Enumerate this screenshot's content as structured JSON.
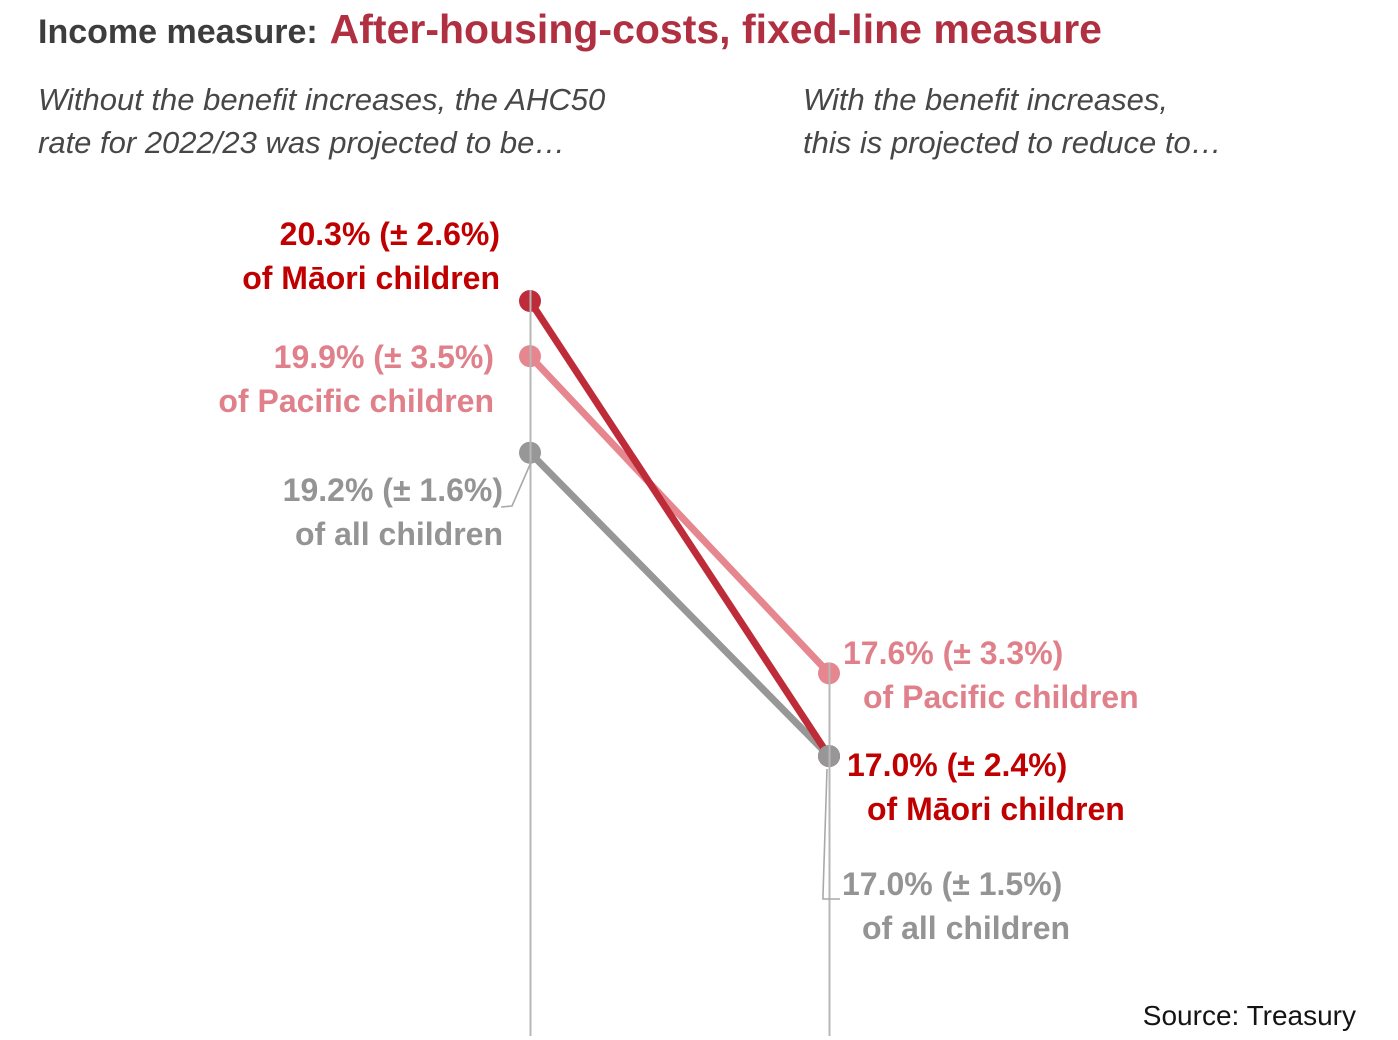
{
  "title": {
    "prefix": "Income measure:",
    "main": "After-housing-costs, fixed-line measure"
  },
  "subtitle_left": {
    "line1": "Without the benefit increases, the AHC50",
    "line2": "rate for 2022/23 was projected to be…"
  },
  "subtitle_right": {
    "line1": "With the benefit increases,",
    "line2": "this is projected to reduce to…"
  },
  "source": "Source: Treasury",
  "colors": {
    "title_prefix": "#3d3d3d",
    "title_main": "#b03041",
    "subtitle": "#474747",
    "source": "#141414",
    "axis_line": "#b7b7b7",
    "leader_line": "#a9a9a9",
    "background": "#ffffff"
  },
  "chart_data": {
    "type": "slope",
    "unit": "%",
    "x_labels": [
      "Without the benefit increases, the AHC50 rate for 2022/23 was projected to be…",
      "With the benefit increases, this is projected to reduce to…"
    ],
    "series": [
      {
        "key": "maori",
        "name": "Māori children",
        "before": 20.3,
        "before_moe": 2.6,
        "after": 17.0,
        "after_moe": 2.4,
        "left_label": [
          "20.3% (± 2.6%)",
          "of Māori children"
        ],
        "right_label": [
          "17.0% (± 2.4%)",
          "of Māori children"
        ],
        "line_color": "#bf2c39",
        "label_color": "#c00000"
      },
      {
        "key": "pacific",
        "name": "Pacific children",
        "before": 19.9,
        "before_moe": 3.5,
        "after": 17.6,
        "after_moe": 3.3,
        "left_label": [
          "19.9% (± 3.5%)",
          "of Pacific children"
        ],
        "right_label": [
          "17.6% (± 3.3%)",
          "of Pacific children"
        ],
        "line_color": "#e6868f",
        "label_color": "#e0808b"
      },
      {
        "key": "all",
        "name": "all children",
        "before": 19.2,
        "before_moe": 1.6,
        "after": 17.0,
        "after_moe": 1.5,
        "left_label": [
          "19.2% (± 1.6%)",
          "of all children"
        ],
        "right_label": [
          "17.0% (± 1.5%)",
          "of all children"
        ],
        "line_color": "#979797",
        "label_color": "#949494"
      }
    ],
    "legend": "none",
    "grid": "off",
    "annotations": "leader lines connect gray 'all children' labels to their dots"
  }
}
